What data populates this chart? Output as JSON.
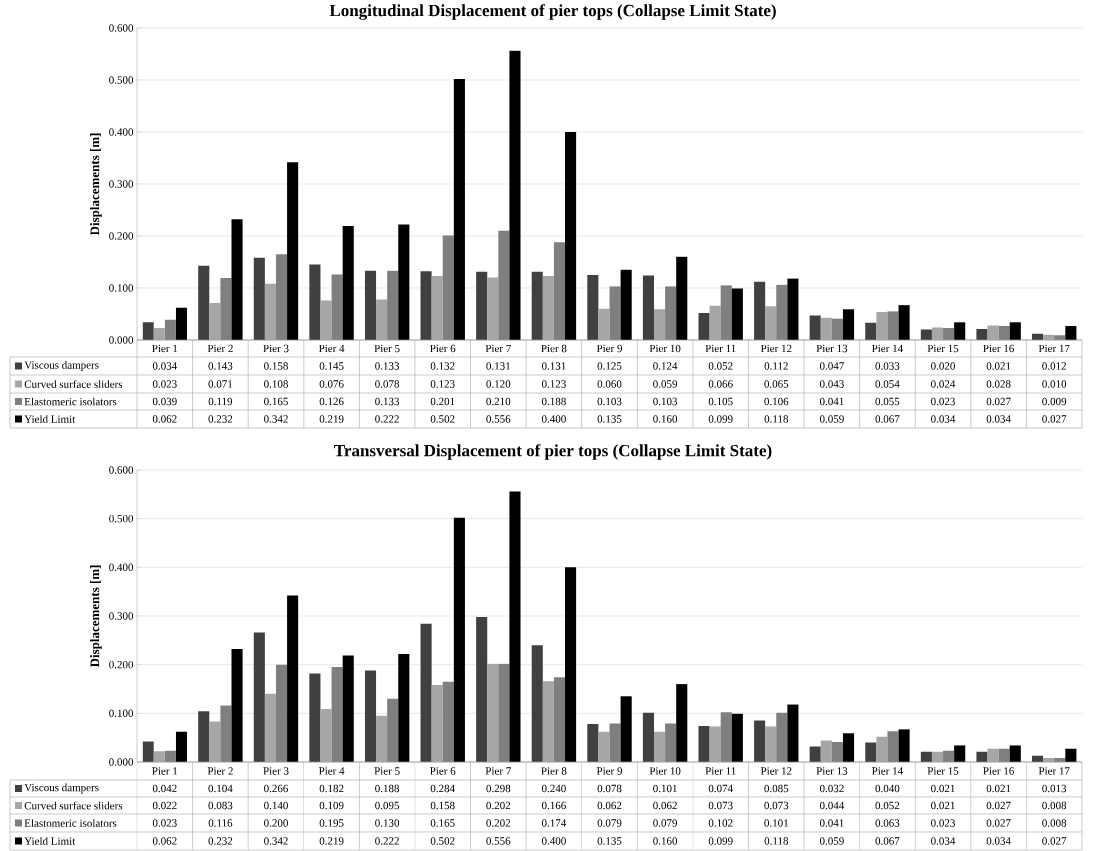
{
  "chart_data": [
    {
      "type": "bar",
      "title": "Longitudinal Displacement of pier tops (Collapse Limit State)",
      "ylabel": "Displacements [m]",
      "categories": [
        "Pier 1",
        "Pier 2",
        "Pier 3",
        "Pier 4",
        "Pier 5",
        "Pier 6",
        "Pier 7",
        "Pier 8",
        "Pier 9",
        "Pier 10",
        "Pier 11",
        "Pier 12",
        "Pier 13",
        "Pier 14",
        "Pier 15",
        "Pier 16",
        "Pier 17"
      ],
      "ylim": [
        0,
        0.6
      ],
      "yticks": [
        {
          "value": 0,
          "label": "0.000"
        },
        {
          "value": 0.1,
          "label": "0.100"
        },
        {
          "value": 0.2,
          "label": "0.200"
        },
        {
          "value": 0.3,
          "label": "0.300"
        },
        {
          "value": 0.4,
          "label": "0.400"
        },
        {
          "value": 0.5,
          "label": "0.500"
        },
        {
          "value": 0.6,
          "label": "0.600"
        }
      ],
      "grid": "y",
      "legend": "bottom",
      "series": [
        {
          "name": "Viscous dampers",
          "color": "#404040",
          "values": [
            0.034,
            0.143,
            0.158,
            0.145,
            0.133,
            0.132,
            0.131,
            0.131,
            0.125,
            0.124,
            0.052,
            0.112,
            0.047,
            0.033,
            0.02,
            0.021,
            0.012
          ],
          "value_labels": [
            "0.034",
            "0.143",
            "0.158",
            "0.145",
            "0.133",
            "0.132",
            "0.131",
            "0.131",
            "0.125",
            "0.124",
            "0.052",
            "0.112",
            "0.047",
            "0.033",
            "0.020",
            "0.021",
            "0.012"
          ]
        },
        {
          "name": "Curved surface sliders",
          "color": "#a6a6a6",
          "values": [
            0.023,
            0.071,
            0.108,
            0.076,
            0.078,
            0.123,
            0.12,
            0.123,
            0.06,
            0.059,
            0.066,
            0.065,
            0.043,
            0.054,
            0.024,
            0.028,
            0.01
          ],
          "value_labels": [
            "0.023",
            "0.071",
            "0.108",
            "0.076",
            "0.078",
            "0.123",
            "0.120",
            "0.123",
            "0.060",
            "0.059",
            "0.066",
            "0.065",
            "0.043",
            "0.054",
            "0.024",
            "0.028",
            "0.010"
          ]
        },
        {
          "name": "Elastomeric isolators",
          "color": "#7f7f7f",
          "values": [
            0.039,
            0.119,
            0.165,
            0.126,
            0.133,
            0.201,
            0.21,
            0.188,
            0.103,
            0.103,
            0.105,
            0.106,
            0.041,
            0.055,
            0.023,
            0.027,
            0.009
          ],
          "value_labels": [
            "0.039",
            "0.119",
            "0.165",
            "0.126",
            "0.133",
            "0.201",
            "0.210",
            "0.188",
            "0.103",
            "0.103",
            "0.105",
            "0.106",
            "0.041",
            "0.055",
            "0.023",
            "0.027",
            "0.009"
          ]
        },
        {
          "name": "Yield Limit",
          "color": "#000000",
          "values": [
            0.062,
            0.232,
            0.342,
            0.219,
            0.222,
            0.502,
            0.556,
            0.4,
            0.135,
            0.16,
            0.099,
            0.118,
            0.059,
            0.067,
            0.034,
            0.034,
            0.027
          ],
          "value_labels": [
            "0.062",
            "0.232",
            "0.342",
            "0.219",
            "0.222",
            "0.502",
            "0.556",
            "0.400",
            "0.135",
            "0.160",
            "0.099",
            "0.118",
            "0.059",
            "0.067",
            "0.034",
            "0.034",
            "0.027"
          ]
        }
      ]
    },
    {
      "type": "bar",
      "title": "Transversal Displacement of pier tops (Collapse Limit State)",
      "ylabel": "Displacements [m]",
      "categories": [
        "Pier 1",
        "Pier 2",
        "Pier 3",
        "Pier 4",
        "Pier 5",
        "Pier 6",
        "Pier 7",
        "Pier 8",
        "Pier 9",
        "Pier 10",
        "Pier 11",
        "Pier 12",
        "Pier 13",
        "Pier 14",
        "Pier 15",
        "Pier 16",
        "Pier 17"
      ],
      "ylim": [
        0,
        0.6
      ],
      "yticks": [
        {
          "value": 0,
          "label": "0.000"
        },
        {
          "value": 0.1,
          "label": "0.100"
        },
        {
          "value": 0.2,
          "label": "0.200"
        },
        {
          "value": 0.3,
          "label": "0.300"
        },
        {
          "value": 0.4,
          "label": "0.400"
        },
        {
          "value": 0.5,
          "label": "0.500"
        },
        {
          "value": 0.6,
          "label": "0.600"
        }
      ],
      "grid": "y",
      "legend": "bottom",
      "series": [
        {
          "name": "Viscous dampers",
          "color": "#404040",
          "values": [
            0.042,
            0.104,
            0.266,
            0.182,
            0.188,
            0.284,
            0.298,
            0.24,
            0.078,
            0.101,
            0.074,
            0.085,
            0.032,
            0.04,
            0.021,
            0.021,
            0.013
          ],
          "value_labels": [
            "0.042",
            "0.104",
            "0.266",
            "0.182",
            "0.188",
            "0.284",
            "0.298",
            "0.240",
            "0.078",
            "0.101",
            "0.074",
            "0.085",
            "0.032",
            "0.040",
            "0.021",
            "0.021",
            "0.013"
          ]
        },
        {
          "name": "Curved surface sliders",
          "color": "#a6a6a6",
          "values": [
            0.022,
            0.083,
            0.14,
            0.109,
            0.095,
            0.158,
            0.202,
            0.166,
            0.062,
            0.062,
            0.073,
            0.073,
            0.044,
            0.052,
            0.021,
            0.027,
            0.008
          ],
          "value_labels": [
            "0.022",
            "0.083",
            "0.140",
            "0.109",
            "0.095",
            "0.158",
            "0.202",
            "0.166",
            "0.062",
            "0.062",
            "0.073",
            "0.073",
            "0.044",
            "0.052",
            "0.021",
            "0.027",
            "0.008"
          ]
        },
        {
          "name": "Elastomeric isolators",
          "color": "#7f7f7f",
          "values": [
            0.023,
            0.116,
            0.2,
            0.195,
            0.13,
            0.165,
            0.202,
            0.174,
            0.079,
            0.079,
            0.102,
            0.101,
            0.041,
            0.063,
            0.023,
            0.027,
            0.008
          ],
          "value_labels": [
            "0.023",
            "0.116",
            "0.200",
            "0.195",
            "0.130",
            "0.165",
            "0.202",
            "0.174",
            "0.079",
            "0.079",
            "0.102",
            "0.101",
            "0.041",
            "0.063",
            "0.023",
            "0.027",
            "0.008"
          ]
        },
        {
          "name": "Yield Limit",
          "color": "#000000",
          "values": [
            0.062,
            0.232,
            0.342,
            0.219,
            0.222,
            0.502,
            0.556,
            0.4,
            0.135,
            0.16,
            0.099,
            0.118,
            0.059,
            0.067,
            0.034,
            0.034,
            0.027
          ],
          "value_labels": [
            "0.062",
            "0.232",
            "0.342",
            "0.219",
            "0.222",
            "0.502",
            "0.556",
            "0.400",
            "0.135",
            "0.160",
            "0.099",
            "0.118",
            "0.059",
            "0.067",
            "0.034",
            "0.034",
            "0.027"
          ]
        }
      ]
    }
  ]
}
